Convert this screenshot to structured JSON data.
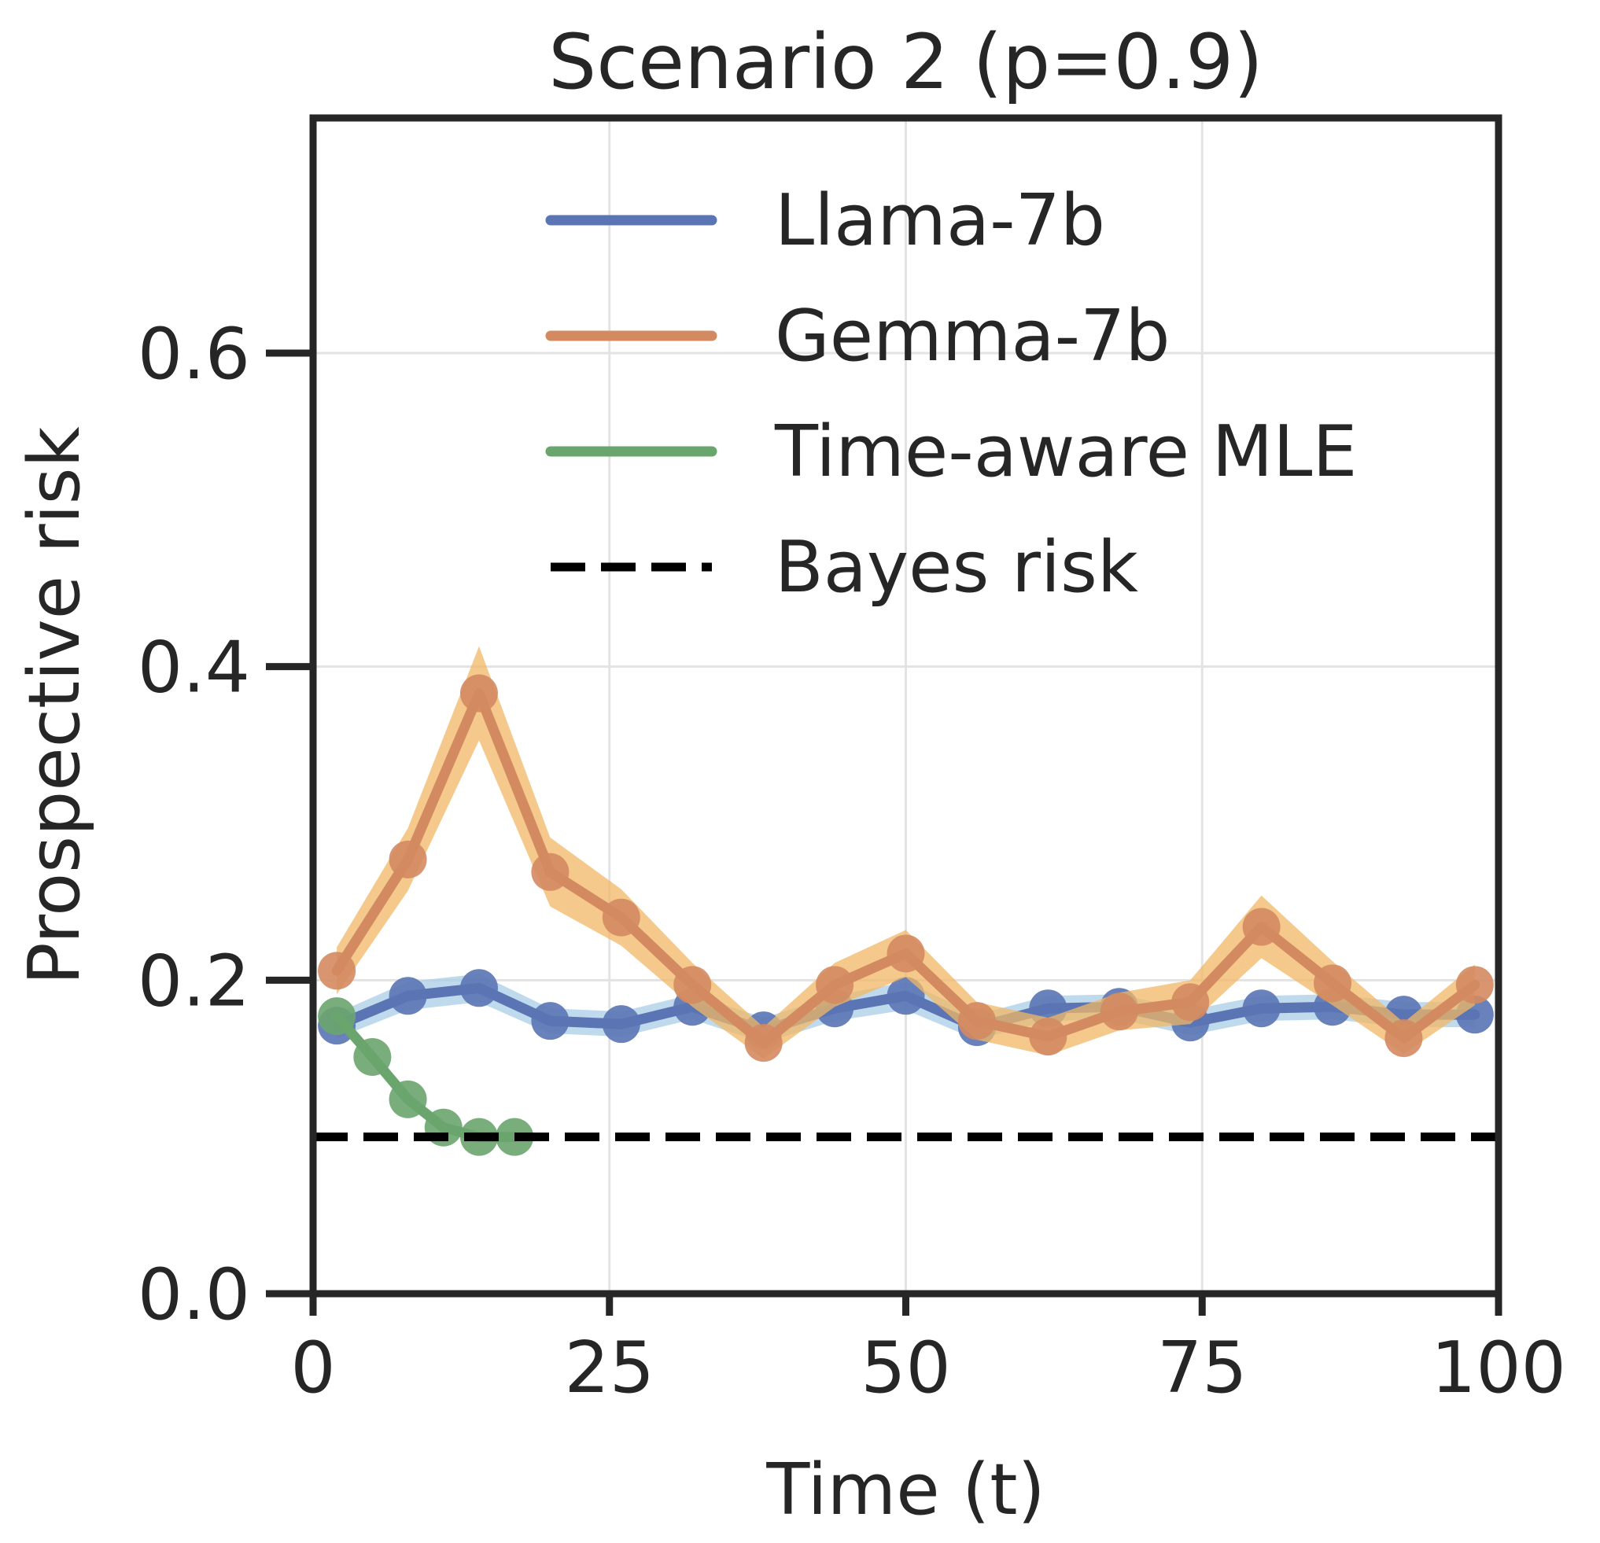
{
  "chart_data": {
    "type": "line",
    "title": "Scenario 2 (p=0.9)",
    "xlabel": "Time (t)",
    "ylabel": "Prospective risk",
    "xlim": [
      0,
      100
    ],
    "ylim": [
      0,
      0.75
    ],
    "xticks": [
      0,
      25,
      50,
      75,
      100
    ],
    "xtick_labels": [
      "0",
      "25",
      "50",
      "75",
      "100"
    ],
    "yticks": [
      0.0,
      0.2,
      0.4,
      0.6
    ],
    "ytick_labels": [
      "0.0",
      "0.2",
      "0.4",
      "0.6"
    ],
    "grid": true,
    "legend_position": "top-right",
    "series": [
      {
        "name": "Llama-7b",
        "color": "#5a74b4",
        "band_color": "#a9cde6",
        "x": [
          2,
          8,
          14,
          20,
          26,
          32,
          38,
          44,
          50,
          56,
          62,
          68,
          74,
          80,
          86,
          92,
          98
        ],
        "y": [
          0.171,
          0.19,
          0.195,
          0.174,
          0.172,
          0.183,
          0.168,
          0.182,
          0.19,
          0.17,
          0.182,
          0.183,
          0.173,
          0.182,
          0.183,
          0.178,
          0.178
        ],
        "err": [
          0.008,
          0.009,
          0.009,
          0.008,
          0.008,
          0.008,
          0.008,
          0.008,
          0.009,
          0.008,
          0.008,
          0.008,
          0.008,
          0.008,
          0.008,
          0.008,
          0.008
        ]
      },
      {
        "name": "Gemma-7b",
        "color": "#d48a60",
        "band_color": "#f2b766",
        "x": [
          2,
          8,
          14,
          20,
          26,
          32,
          38,
          44,
          50,
          56,
          62,
          68,
          74,
          80,
          86,
          92,
          98
        ],
        "y": [
          0.206,
          0.277,
          0.383,
          0.269,
          0.24,
          0.197,
          0.16,
          0.197,
          0.217,
          0.174,
          0.164,
          0.18,
          0.186,
          0.234,
          0.198,
          0.163,
          0.197
        ],
        "err": [
          0.015,
          0.02,
          0.03,
          0.022,
          0.018,
          0.014,
          0.01,
          0.014,
          0.015,
          0.012,
          0.012,
          0.012,
          0.014,
          0.02,
          0.014,
          0.01,
          0.013
        ]
      },
      {
        "name": "Time-aware MLE",
        "color": "#6aa56e",
        "band_color": "#8fc493",
        "x": [
          2,
          5,
          8,
          11,
          14,
          17
        ],
        "y": [
          0.177,
          0.151,
          0.124,
          0.106,
          0.1,
          0.1
        ],
        "err": [
          0,
          0,
          0,
          0,
          0,
          0
        ]
      },
      {
        "name": "Bayes risk",
        "color": "#000000",
        "dashed": true,
        "x": [
          0,
          100
        ],
        "y": [
          0.1,
          0.1
        ]
      }
    ]
  }
}
